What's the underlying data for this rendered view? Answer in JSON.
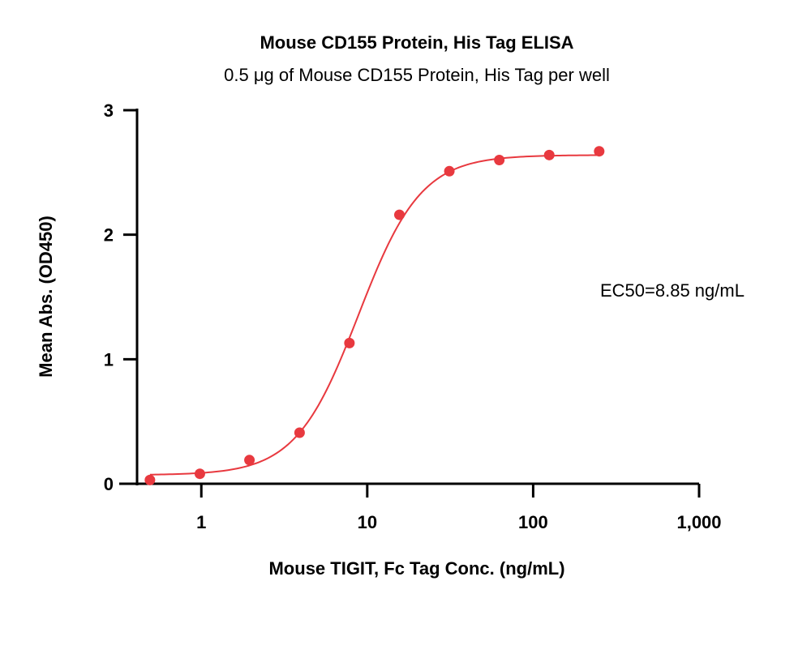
{
  "chart_data": {
    "type": "scatter",
    "title": "Mouse CD155 Protein, His Tag ELISA",
    "subtitle": "0.5 μg of Mouse CD155 Protein, His Tag per well",
    "xlabel": "Mouse TIGIT, Fc Tag Conc. (ng/mL)",
    "ylabel": "Mean Abs. (OD450)",
    "x_scale": "log",
    "xlim": [
      0.32,
      1000
    ],
    "ylim": [
      0,
      3
    ],
    "x_ticks": [
      1,
      10,
      100,
      1000
    ],
    "x_tick_labels": [
      "1",
      "10",
      "100",
      "1,000"
    ],
    "y_ticks": [
      0,
      1,
      2,
      3
    ],
    "y_tick_labels": [
      "0",
      "1",
      "2",
      "3"
    ],
    "grid": false,
    "colors": {
      "series": "#e8393f",
      "axis": "#000000"
    },
    "series": [
      {
        "x": [
          0.49,
          0.98,
          1.95,
          3.91,
          7.81,
          15.63,
          31.25,
          62.5,
          125,
          250
        ],
        "y": [
          0.03,
          0.08,
          0.19,
          0.41,
          1.13,
          2.16,
          2.51,
          2.6,
          2.64,
          2.67
        ]
      }
    ],
    "fit": {
      "model": "4PL",
      "bottom": 0.07,
      "top": 2.64,
      "ec50": 8.85,
      "hill": 2.3,
      "x_range": [
        0.49,
        250
      ]
    },
    "annotations": [
      {
        "text": "EC50=8.85 ng/mL"
      }
    ]
  }
}
